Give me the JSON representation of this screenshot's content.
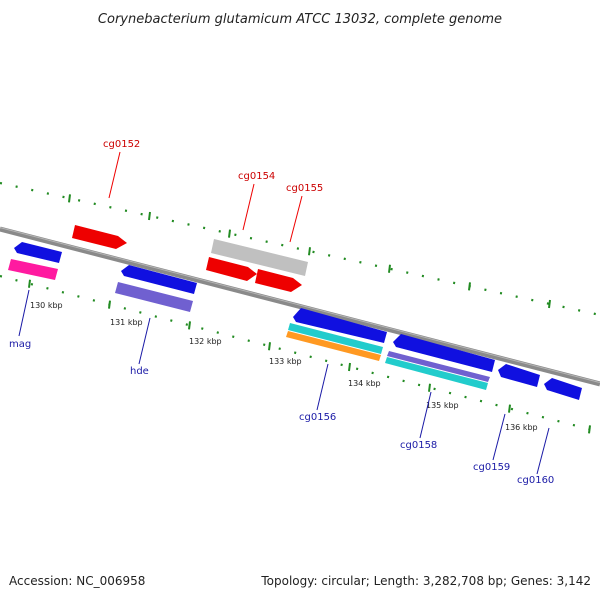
{
  "title": "Corynebacterium glutamicum ATCC 13032, complete genome",
  "footer": {
    "accession": "Accession: NC_006958",
    "summary": "Topology: circular; Length: 3,282,708 bp; Genes: 3,142"
  },
  "colors": {
    "backbone": "#8a8a8a",
    "tick": "#228b22",
    "blue_gene": "#1010e0",
    "red_gene": "#ee0000",
    "grey_gene": "#c0c0c0",
    "magenta_gene": "#ff1aa0",
    "purple_gene": "#7060d0",
    "cyan_gene": "#22cccc",
    "orange_gene": "#ff9922",
    "red_label": "#cc0000",
    "blue_label": "#1a1aa6"
  },
  "scale": {
    "ticks": [
      {
        "label": "130 kbp"
      },
      {
        "label": "131 kbp"
      },
      {
        "label": "132 kbp"
      },
      {
        "label": "133 kbp"
      },
      {
        "label": "134 kbp"
      },
      {
        "label": "135 kbp"
      },
      {
        "label": "136 kbp"
      }
    ]
  },
  "gene_labels": {
    "forward": [
      {
        "name": "cg0152"
      },
      {
        "name": "cg0154"
      },
      {
        "name": "cg0155"
      }
    ],
    "reverse": [
      {
        "name": "mag"
      },
      {
        "name": "hde"
      },
      {
        "name": "cg0156"
      },
      {
        "name": "cg0158"
      },
      {
        "name": "cg0159"
      },
      {
        "name": "cg0160"
      }
    ]
  }
}
